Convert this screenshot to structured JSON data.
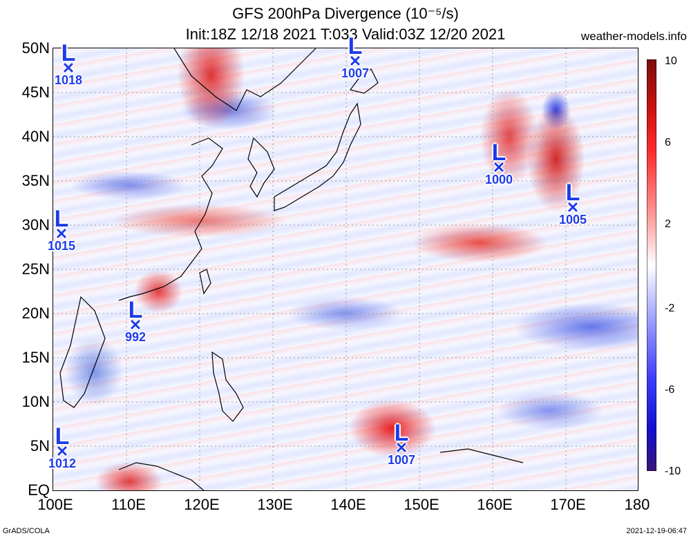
{
  "header": {
    "title_line1": "GFS 200hPa Divergence (10⁻⁵/s)",
    "title_line2": "Init:18Z 12/18 2021 T:033 Valid:03Z 12/20 2021",
    "site": "weather-models.info"
  },
  "axes": {
    "y_labels": [
      "50N",
      "45N",
      "40N",
      "35N",
      "30N",
      "25N",
      "20N",
      "15N",
      "10N",
      "5N",
      "EQ"
    ],
    "x_labels": [
      "100E",
      "110E",
      "120E",
      "130E",
      "140E",
      "150E",
      "160E",
      "170E",
      "180"
    ]
  },
  "colorbar": {
    "labels": [
      "10",
      "6",
      "2",
      "-2",
      "-6",
      "-10"
    ],
    "colors": [
      "#7a1010",
      "#cc1111",
      "#ff2a2a",
      "#ff9a9a",
      "#ffffff",
      "#a5a9ff",
      "#3a3aff",
      "#1010cc",
      "#3a1478"
    ]
  },
  "lows": [
    {
      "symbol": "L",
      "value": "1018"
    },
    {
      "symbol": "L",
      "value": "1007"
    },
    {
      "symbol": "L",
      "value": "1000"
    },
    {
      "symbol": "L",
      "value": "1005"
    },
    {
      "symbol": "L",
      "value": "1015"
    },
    {
      "symbol": "L",
      "value": "992"
    },
    {
      "symbol": "L",
      "value": "1012"
    },
    {
      "symbol": "L",
      "value": "1007"
    }
  ],
  "footer": {
    "left": "GrADS/COLA",
    "right": "2021-12-19-06:47"
  }
}
